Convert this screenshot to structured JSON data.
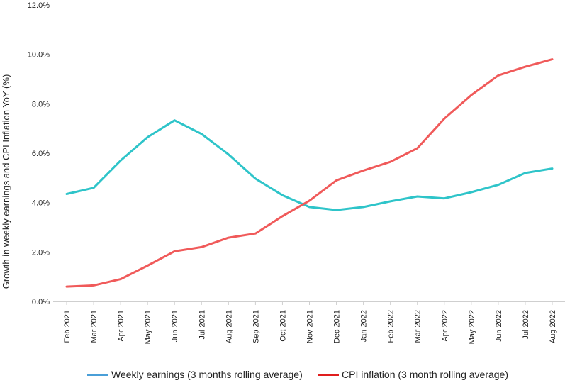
{
  "chart_data": {
    "type": "line",
    "title": "",
    "xlabel": "",
    "ylabel": "Growth in weekly earnings and CPI Inflation YoY (%)",
    "categories": [
      "Feb 2021",
      "Mar 2021",
      "Apr 2021",
      "May 2021",
      "Jun 2021",
      "Jul 2021",
      "Aug 2021",
      "Sep 2021",
      "Oct 2021",
      "Nov 2021",
      "Dec 2021",
      "Jan 2022",
      "Feb 2022",
      "Mar 2022",
      "Apr 2022",
      "May 2022",
      "Jun 2022",
      "Jul 2022",
      "Aug 2022"
    ],
    "yticks": [
      "0.0%",
      "2.0%",
      "4.0%",
      "6.0%",
      "8.0%",
      "10.0%",
      "12.0%"
    ],
    "ylim": [
      0,
      12
    ],
    "grid": false,
    "legend_position": "bottom",
    "series": [
      {
        "name": "Weekly earnings (3 months rolling average)",
        "color": "#2ec4c9",
        "legend_color": "#4a9fd8",
        "values": [
          4.35,
          4.6,
          5.7,
          6.65,
          7.33,
          6.78,
          5.95,
          4.97,
          4.3,
          3.82,
          3.7,
          3.82,
          4.05,
          4.25,
          4.17,
          4.42,
          4.72,
          5.2,
          5.38
        ]
      },
      {
        "name": "CPI inflation (3 month rolling average)",
        "color": "#f05a5a",
        "legend_color": "#e01e1e",
        "values": [
          0.6,
          0.65,
          0.9,
          1.45,
          2.03,
          2.2,
          2.58,
          2.75,
          3.45,
          4.08,
          4.9,
          5.3,
          5.65,
          6.2,
          7.4,
          8.35,
          9.15,
          9.5,
          9.8
        ]
      }
    ]
  }
}
